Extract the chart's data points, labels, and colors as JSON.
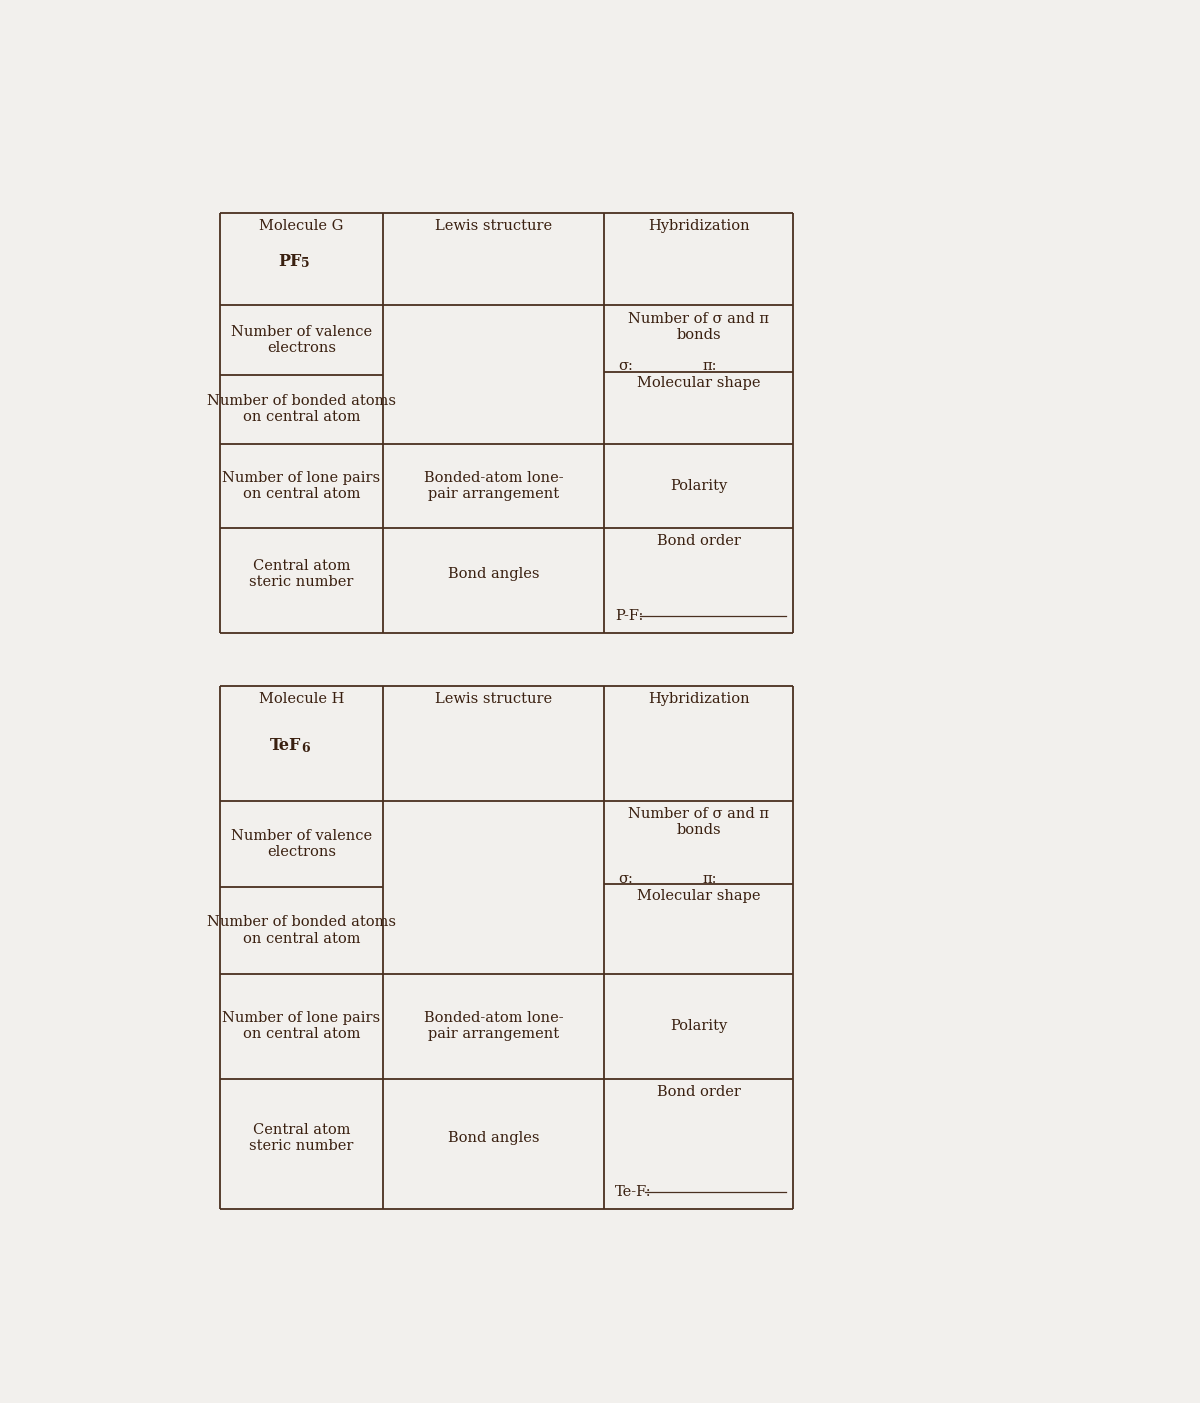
{
  "bg_color": "#f2f0ed",
  "line_color": "#4a3020",
  "text_color": "#3a2010",
  "font_size": 10.5,
  "table1": {
    "mol_label": "Molecule G",
    "formula_main": "PF",
    "formula_sub": "5",
    "formula_display": "bold",
    "bond_label": "P-F:",
    "col_header_0": "Molecule G",
    "col_header_1": "Lewis structure",
    "col_header_2": "Hybridization"
  },
  "table2": {
    "mol_label": "Molecule H",
    "formula_main": "TeF",
    "formula_sub": "6",
    "formula_display": "bold",
    "bond_label": "Te-F:",
    "col_header_0": "Molecule H",
    "col_header_1": "Lewis structure",
    "col_header_2": "Hybridization"
  },
  "row_labels": {
    "valence": "Number of valence\nelectrons",
    "bonded": "Number of bonded atoms\non central atom",
    "lone_pairs": "Number of lone pairs\non central atom",
    "bonded_atom_lone": "Bonded-atom lone-\npair arrangement",
    "polarity": "Polarity",
    "central_atom": "Central atom\nsteric number",
    "bond_angles": "Bond angles",
    "bond_order": "Bond order",
    "sigma_pi": "Number of σ and π\nbonds",
    "sigma_label": "σ:",
    "pi_label": "π:",
    "mol_shape": "Molecular shape"
  }
}
